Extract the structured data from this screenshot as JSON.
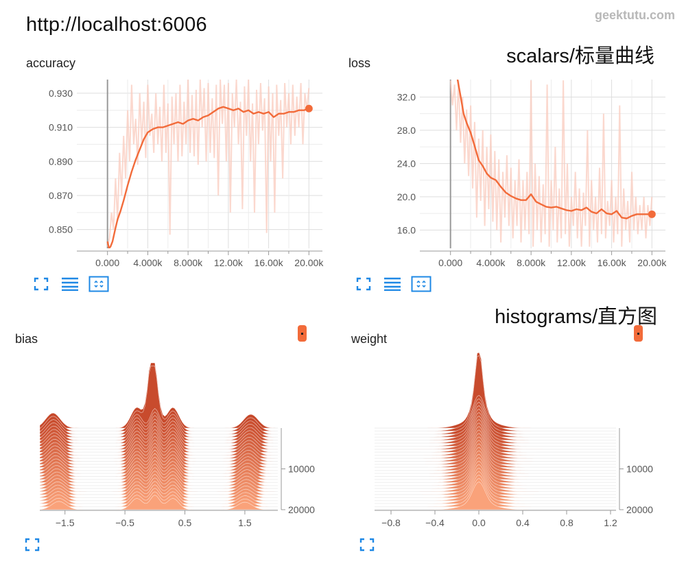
{
  "header": {
    "url": "http://localhost:6006",
    "watermark": "geektutu.com"
  },
  "sections": {
    "scalars": "scalars/标量曲线",
    "histograms": "histograms/直方图"
  },
  "colors": {
    "accent": "#f26b3a",
    "raw": "#f9cbbd",
    "grid": "#dddddd",
    "axis": "#999999",
    "zero_line": "#999999",
    "icon": "#1e88e5"
  },
  "icons": {
    "fit": "fit-domain-icon",
    "lines": "toggle-lines-icon",
    "expand": "expand-icon",
    "series_color": "color-chip-icon"
  },
  "chart_data": [
    {
      "type": "line",
      "title": "accuracy",
      "xlim": [
        -2500,
        21000
      ],
      "ylim": [
        0.839,
        0.938
      ],
      "xticks": [
        0,
        4000,
        8000,
        12000,
        16000,
        20000
      ],
      "xtick_labels": [
        "0.000",
        "4.000k",
        "8.000k",
        "12.00k",
        "16.00k",
        "20.00k"
      ],
      "yticks": [
        0.85,
        0.87,
        0.89,
        0.91,
        0.93
      ],
      "ytick_labels": [
        "0.850",
        "0.870",
        "0.890",
        "0.910",
        "0.930"
      ],
      "grid": true,
      "series": [
        {
          "role": "smoothed",
          "x": [
            0,
            150,
            300,
            500,
            800,
            1000,
            1300,
            1600,
            2000,
            2400,
            2800,
            3200,
            3600,
            4000,
            4500,
            5000,
            5500,
            6000,
            6500,
            7000,
            7500,
            8000,
            8500,
            9000,
            9500,
            10000,
            10500,
            11000,
            11500,
            12000,
            12500,
            13000,
            13500,
            14000,
            14500,
            15000,
            15500,
            16000,
            16500,
            17000,
            17500,
            18000,
            18500,
            19000,
            19500,
            20000
          ],
          "y": [
            0.843,
            0.839,
            0.84,
            0.843,
            0.851,
            0.856,
            0.861,
            0.867,
            0.876,
            0.884,
            0.891,
            0.897,
            0.903,
            0.907,
            0.909,
            0.91,
            0.91,
            0.911,
            0.912,
            0.913,
            0.912,
            0.914,
            0.915,
            0.914,
            0.916,
            0.917,
            0.919,
            0.921,
            0.922,
            0.921,
            0.92,
            0.921,
            0.919,
            0.92,
            0.918,
            0.919,
            0.918,
            0.919,
            0.916,
            0.918,
            0.918,
            0.919,
            0.919,
            0.92,
            0.92,
            0.921
          ]
        },
        {
          "role": "raw",
          "x": [
            0,
            200,
            400,
            600,
            800,
            1000,
            1200,
            1400,
            1600,
            1800,
            2000,
            2200,
            2400,
            2600,
            2800,
            3000,
            3200,
            3400,
            3600,
            3800,
            4000,
            4200,
            4400,
            4600,
            4800,
            5000,
            5200,
            5400,
            5600,
            5800,
            6000,
            6200,
            6400,
            6600,
            6800,
            7000,
            7200,
            7400,
            7600,
            7800,
            8000,
            8200,
            8400,
            8600,
            8800,
            9000,
            9200,
            9400,
            9600,
            9800,
            10000,
            10200,
            10400,
            10600,
            10800,
            11000,
            11200,
            11400,
            11600,
            11800,
            12000,
            12200,
            12400,
            12600,
            12800,
            13000,
            13200,
            13400,
            13600,
            13800,
            14000,
            14200,
            14400,
            14600,
            14800,
            15000,
            15200,
            15400,
            15600,
            15800,
            16000,
            16200,
            16400,
            16600,
            16800,
            17000,
            17200,
            17400,
            17600,
            17800,
            18000,
            18200,
            18400,
            18600,
            18800,
            19000,
            19200,
            19400,
            19600,
            19800,
            20000
          ],
          "y": [
            0.84,
            0.845,
            0.86,
            0.85,
            0.88,
            0.855,
            0.895,
            0.87,
            0.905,
            0.88,
            0.92,
            0.89,
            0.935,
            0.9,
            0.915,
            0.888,
            0.93,
            0.9,
            0.925,
            0.892,
            0.935,
            0.905,
            0.918,
            0.895,
            0.93,
            0.9,
            0.922,
            0.89,
            0.935,
            0.895,
            0.924,
            0.847,
            0.928,
            0.9,
            0.93,
            0.89,
            0.935,
            0.893,
            0.925,
            0.9,
            0.938,
            0.895,
            0.929,
            0.893,
            0.932,
            0.888,
            0.938,
            0.91,
            0.933,
            0.89,
            0.936,
            0.895,
            0.927,
            0.892,
            0.935,
            0.87,
            0.938,
            0.912,
            0.935,
            0.89,
            0.936,
            0.86,
            0.93,
            0.91,
            0.938,
            0.9,
            0.925,
            0.862,
            0.934,
            0.905,
            0.938,
            0.89,
            0.924,
            0.86,
            0.932,
            0.9,
            0.936,
            0.908,
            0.927,
            0.848,
            0.934,
            0.89,
            0.93,
            0.86,
            0.935,
            0.905,
            0.926,
            0.88,
            0.936,
            0.91,
            0.93,
            0.9,
            0.935,
            0.905,
            0.928,
            0.91,
            0.936,
            0.9,
            0.93,
            0.92,
            0.933
          ]
        }
      ],
      "end_marker": {
        "x": 20000,
        "y": 0.921
      }
    },
    {
      "type": "line",
      "title": "loss",
      "xlim": [
        -2500,
        21000
      ],
      "ylim": [
        13.8,
        34.1
      ],
      "xticks": [
        0,
        4000,
        8000,
        12000,
        16000,
        20000
      ],
      "xtick_labels": [
        "0.000",
        "4.000k",
        "8.000k",
        "12.00k",
        "16.00k",
        "20.00k"
      ],
      "yticks": [
        16,
        20,
        24,
        28,
        32
      ],
      "ytick_labels": [
        "16.0",
        "20.0",
        "24.0",
        "28.0",
        "32.0"
      ],
      "grid": true,
      "series": [
        {
          "role": "smoothed",
          "x": [
            700,
            1000,
            1300,
            1600,
            2000,
            2400,
            2800,
            3200,
            3600,
            4000,
            4500,
            5000,
            5500,
            6000,
            6500,
            7000,
            7500,
            8000,
            8500,
            9000,
            9500,
            10000,
            10500,
            11000,
            11500,
            12000,
            12500,
            13000,
            13500,
            14000,
            14500,
            15000,
            15500,
            16000,
            16500,
            17000,
            17500,
            18000,
            18500,
            19000,
            19500,
            20000
          ],
          "y": [
            34.1,
            32.1,
            30.0,
            28.9,
            27.7,
            26.1,
            24.4,
            23.7,
            22.8,
            22.3,
            22.0,
            21.2,
            20.5,
            20.1,
            19.8,
            19.6,
            19.6,
            20.3,
            19.4,
            19.1,
            18.8,
            18.7,
            18.8,
            18.6,
            18.4,
            18.3,
            18.5,
            18.4,
            18.7,
            18.2,
            18.0,
            18.5,
            18.0,
            17.9,
            18.3,
            17.5,
            17.4,
            17.7,
            17.9,
            17.9,
            17.9,
            17.9
          ]
        },
        {
          "role": "raw",
          "x": [
            0,
            200,
            400,
            600,
            800,
            1000,
            1200,
            1400,
            1600,
            1800,
            2000,
            2200,
            2400,
            2600,
            2800,
            3000,
            3200,
            3400,
            3600,
            3800,
            4000,
            4200,
            4400,
            4600,
            4800,
            5000,
            5200,
            5400,
            5600,
            5800,
            6000,
            6200,
            6400,
            6600,
            6800,
            7000,
            7200,
            7400,
            7600,
            7800,
            8000,
            8200,
            8400,
            8600,
            8800,
            9000,
            9200,
            9400,
            9600,
            9800,
            10000,
            10200,
            10400,
            10600,
            10800,
            11000,
            11200,
            11400,
            11600,
            11800,
            12000,
            12200,
            12400,
            12600,
            12800,
            13000,
            13200,
            13400,
            13600,
            13800,
            14000,
            14200,
            14400,
            14600,
            14800,
            15000,
            15200,
            15400,
            15600,
            15800,
            16000,
            16200,
            16400,
            16600,
            16800,
            17000,
            17200,
            17400,
            17600,
            17800,
            18000,
            18200,
            18400,
            18600,
            18800,
            19000,
            19200,
            19400,
            19600,
            19800,
            20000
          ],
          "y": [
            34.0,
            31.0,
            33.5,
            28.0,
            34.0,
            26.5,
            32.0,
            24.0,
            30.5,
            22.5,
            31.0,
            21.0,
            29.0,
            17.5,
            27.0,
            19.5,
            28.0,
            16.5,
            26.0,
            18.5,
            27.5,
            17.0,
            25.5,
            16.0,
            24.5,
            14.5,
            23.0,
            17.5,
            25.0,
            16.5,
            23.5,
            15.0,
            22.0,
            16.5,
            24.5,
            14.5,
            22.0,
            16.0,
            23.0,
            15.5,
            34.0,
            14.0,
            24.0,
            16.0,
            22.5,
            14.5,
            21.5,
            15.5,
            33.5,
            14.0,
            22.0,
            16.0,
            26.0,
            14.5,
            21.0,
            15.0,
            34.0,
            15.5,
            24.0,
            14.0,
            20.0,
            16.5,
            23.0,
            15.0,
            21.0,
            14.0,
            20.5,
            16.5,
            28.0,
            14.0,
            22.0,
            16.0,
            20.0,
            14.5,
            23.5,
            15.5,
            30.0,
            15.0,
            19.5,
            16.5,
            22.0,
            14.5,
            20.0,
            15.5,
            31.0,
            14.0,
            21.0,
            16.0,
            19.5,
            14.5,
            23.0,
            16.0,
            20.0,
            15.5,
            19.0,
            16.0,
            20.0,
            15.0,
            19.0,
            16.5,
            20.0
          ]
        }
      ],
      "end_marker": {
        "x": 20000,
        "y": 17.9
      }
    },
    {
      "type": "area",
      "title": "bias",
      "xlim": [
        -1.92,
        2.05
      ],
      "steps_lim": [
        0,
        20000
      ],
      "xticks": [
        -1.5,
        -0.5,
        0.5,
        1.5
      ],
      "xtick_labels": [
        "−1.5",
        "−0.5",
        "0.5",
        "1.5"
      ],
      "yticks": [
        10000,
        20000
      ],
      "ytick_labels": [
        "10000",
        "20000"
      ],
      "distribution_centers": [
        -1.6,
        -0.3,
        0.0,
        0.3,
        1.5
      ],
      "peak_center": -0.05
    },
    {
      "type": "area",
      "title": "weight",
      "xlim": [
        -0.95,
        1.25
      ],
      "steps_lim": [
        0,
        20000
      ],
      "xticks": [
        -0.8,
        -0.4,
        0.0,
        0.4,
        0.8,
        1.2
      ],
      "xtick_labels": [
        "−0.8",
        "−0.4",
        "0.0",
        "0.4",
        "0.8",
        "1.2"
      ],
      "yticks": [
        10000,
        20000
      ],
      "ytick_labels": [
        "10000",
        "20000"
      ],
      "distribution_centers": [
        0.0
      ],
      "peak_center": 0.0
    }
  ]
}
